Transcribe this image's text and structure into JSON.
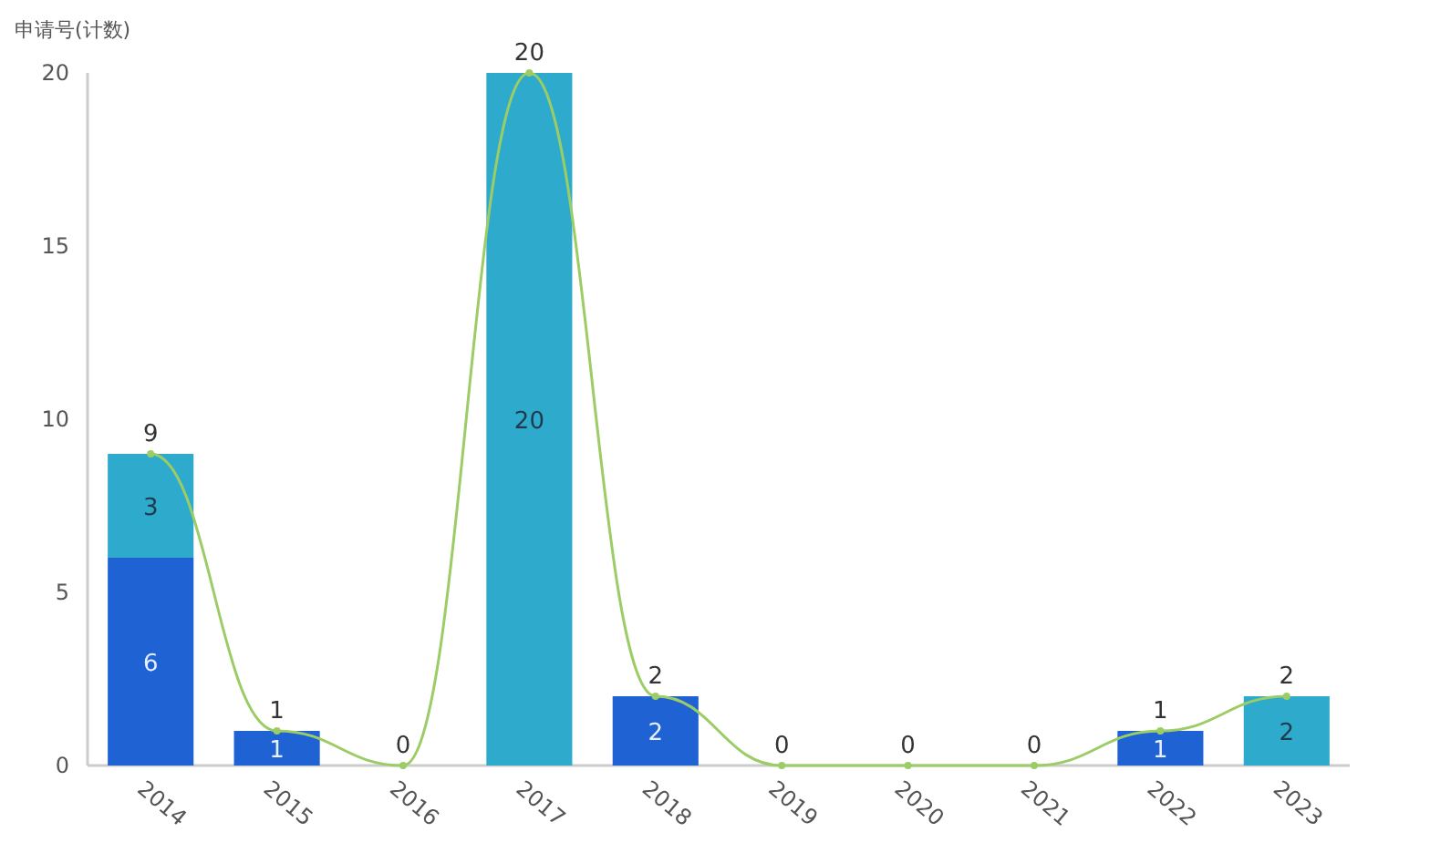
{
  "chart_data": {
    "type": "bar",
    "stacked": true,
    "ylabel": "申请号(计数)",
    "categories": [
      "2014",
      "2015",
      "2016",
      "2017",
      "2018",
      "2019",
      "2020",
      "2021",
      "2022",
      "2023"
    ],
    "ylim": [
      0,
      20
    ],
    "yticks": [
      0,
      5,
      10,
      15,
      20
    ],
    "grid": false,
    "series": [
      {
        "color": "#1f62d4",
        "values": [
          6,
          1,
          0,
          0,
          2,
          0,
          0,
          0,
          1,
          0
        ],
        "value_labels": [
          "6",
          "1",
          null,
          null,
          "2",
          null,
          null,
          null,
          "1",
          null
        ]
      },
      {
        "color": "#2eaacd",
        "values": [
          3,
          0,
          0,
          20,
          0,
          0,
          0,
          0,
          0,
          2
        ],
        "value_labels": [
          "3",
          null,
          null,
          "20",
          null,
          null,
          null,
          null,
          null,
          "2"
        ]
      },
      {
        "type": "line",
        "color": "#9ccc65",
        "marker": "circle",
        "line_style": "solid",
        "values": [
          9,
          1,
          0,
          20,
          2,
          0,
          0,
          0,
          1,
          2
        ],
        "value_labels": [
          "9",
          "1",
          "0",
          "20",
          "2",
          "0",
          "0",
          "0",
          "1",
          "2"
        ]
      }
    ]
  }
}
